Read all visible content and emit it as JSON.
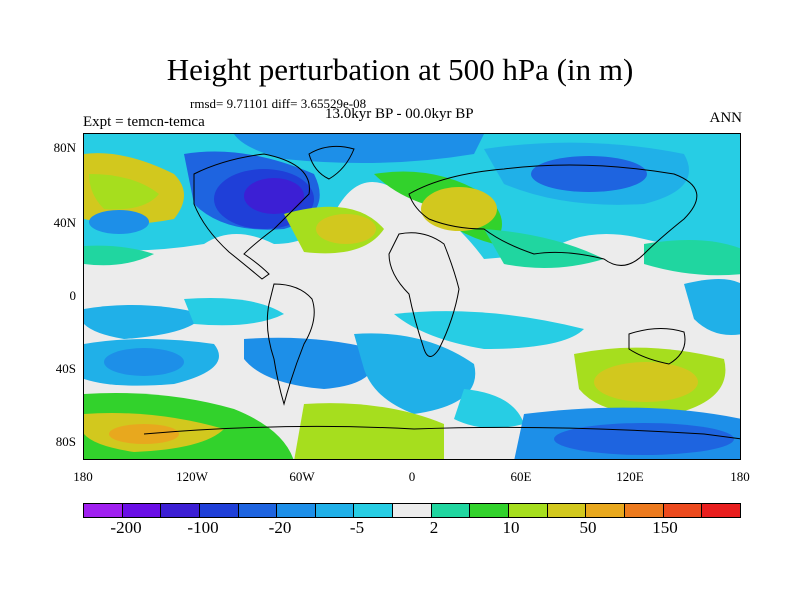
{
  "title": "Height perturbation at 500 hPa (in m)",
  "stats": "rmsd= 9.71101 diff= 3.65529e-08",
  "period": "13.0kyr BP - 00.0kyr BP",
  "experiment": "Expt = temcn-temca",
  "season": "ANN",
  "map": {
    "lat_ticks": [
      "80N",
      "40N",
      "0",
      "40S",
      "80S"
    ],
    "lon_ticks": [
      "180",
      "120W",
      "60W",
      "0",
      "60E",
      "120E",
      "180"
    ]
  },
  "colorbar": {
    "colors": [
      "#a020f0",
      "#6a0fe6",
      "#3c1fd4",
      "#1f3fd8",
      "#1e64e0",
      "#1d8fe8",
      "#20b0e8",
      "#27cde4",
      "#ececec",
      "#20d6a0",
      "#32d22c",
      "#a6de1e",
      "#d2c81e",
      "#e8a81e",
      "#ec7a1e",
      "#ec4a1e",
      "#e81e1e"
    ],
    "labels": [
      "-200",
      "-100",
      "-20",
      "-5",
      "2",
      "10",
      "50",
      "150"
    ]
  }
}
